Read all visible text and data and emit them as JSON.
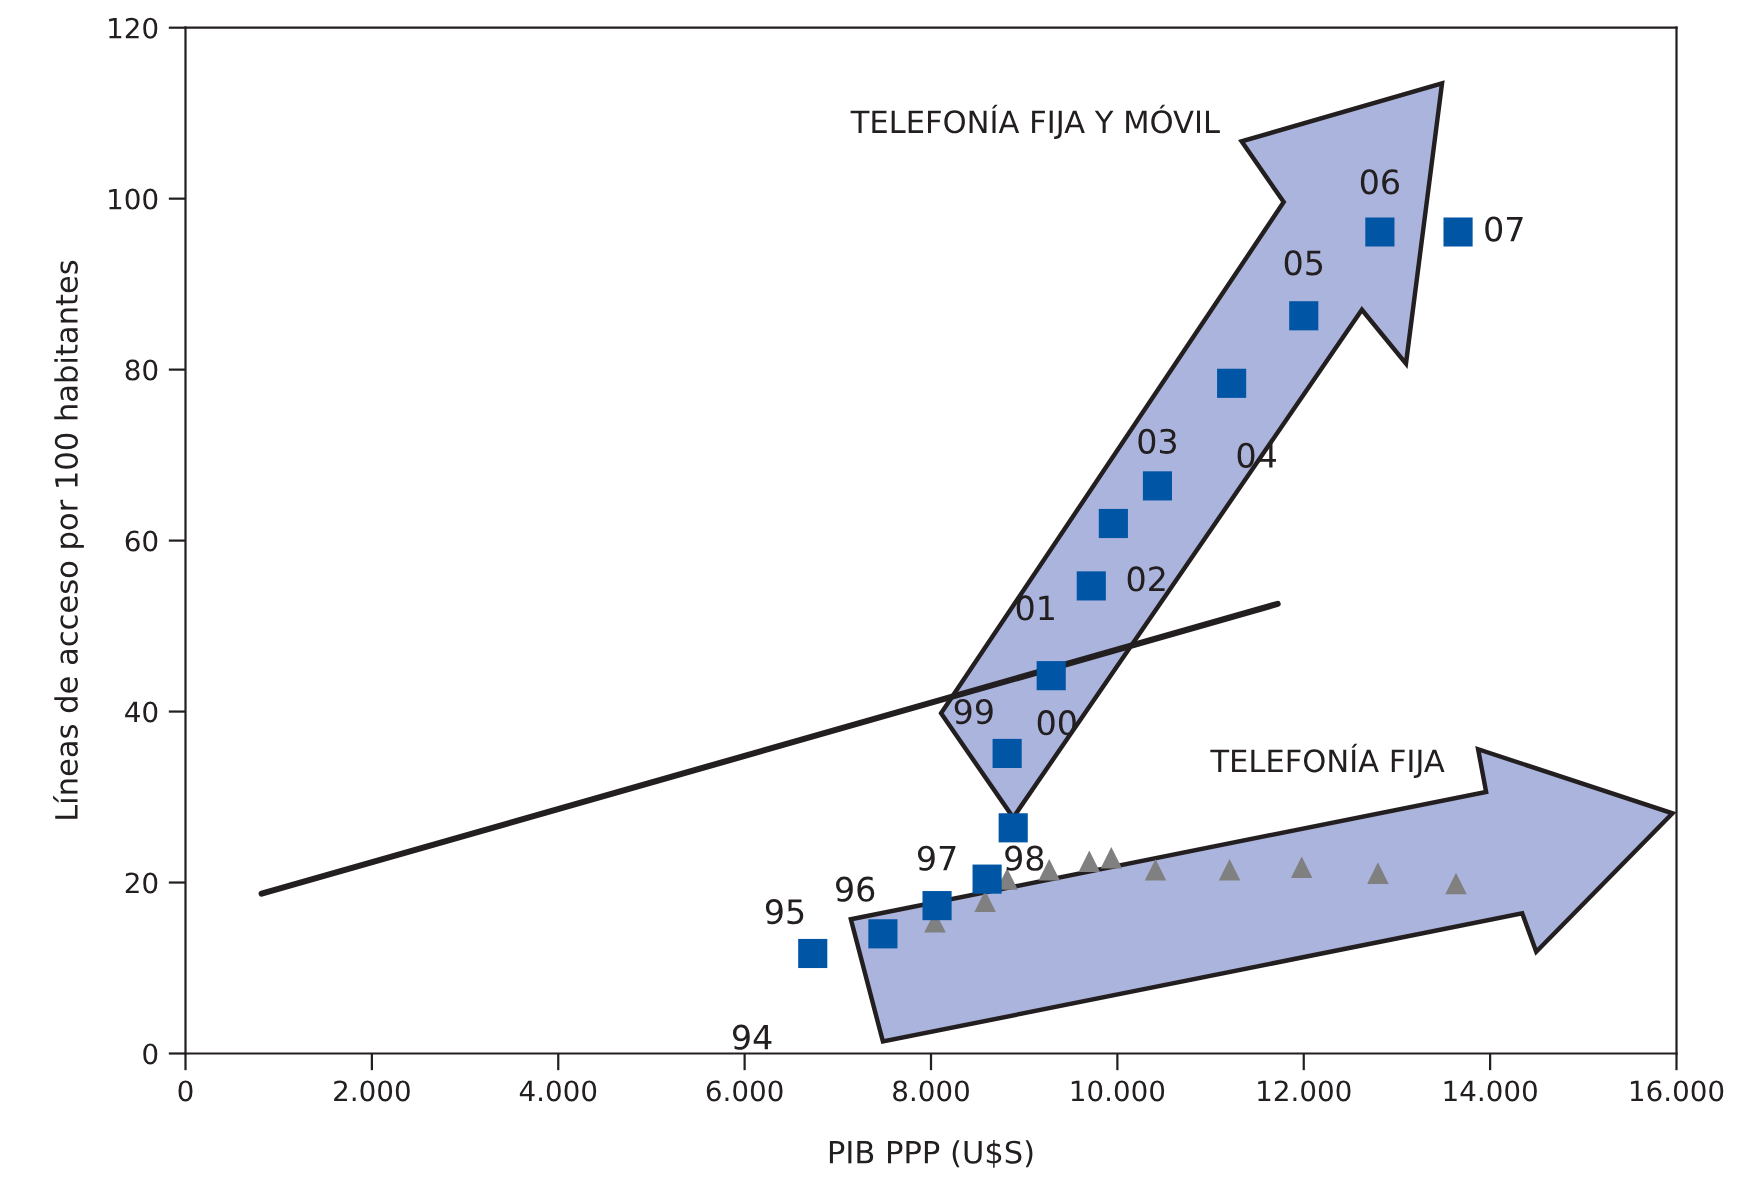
{
  "chart_data": {
    "type": "scatter",
    "xlabel": "PIB PPP (U$S)",
    "ylabel": "Líneas de acceso por 100 habitantes",
    "xlim": [
      0,
      16000
    ],
    "ylim": [
      0,
      120
    ],
    "xticks": [
      0,
      {
        "value": 2000,
        "label": "2.000"
      },
      {
        "value": 4000,
        "label": "4.000"
      },
      {
        "value": 6000,
        "label": "6.000"
      },
      {
        "value": 8000,
        "label": "8.000"
      },
      {
        "value": 10000,
        "label": "10.000"
      },
      {
        "value": 12000,
        "label": "12.000"
      },
      {
        "value": 14000,
        "label": "14.000"
      },
      {
        "value": 16000,
        "label": "16.000"
      }
    ],
    "yticks": [
      0,
      20,
      40,
      60,
      80,
      100,
      120
    ],
    "grid": false,
    "series": [
      {
        "type": "line",
        "color": "#231f20",
        "x": [
          817,
          11720
        ],
        "values": [
          18.7,
          52.6
        ],
        "marker": "none"
      },
      {
        "color": "#808080",
        "marker": "triangle",
        "x": [
          8043,
          8581,
          8817,
          9269,
          9699,
          9935,
          10409,
          11204,
          11978,
          12796,
          13634
        ],
        "values": [
          15.4,
          17.8,
          20.4,
          21.5,
          22.5,
          22.9,
          21.5,
          21.5,
          21.8,
          21.1,
          19.9
        ]
      },
      {
        "color": "#0055a5",
        "marker": "square",
        "x": [
          6731,
          7484,
          8065,
          8602,
          8882,
          8817,
          9290,
          9720,
          9957,
          10430,
          11226,
          12000,
          12817,
          13656
        ],
        "values": [
          11.7,
          14.0,
          17.3,
          20.4,
          26.4,
          35.1,
          44.2,
          54.7,
          62.0,
          66.4,
          78.4,
          86.3,
          96.1,
          96.1
        ]
      }
    ],
    "annotations": [
      "94",
      {
        "text": "95",
        "x": 6731,
        "y": 11.7
      },
      {
        "text": "96",
        "x": 7484,
        "y": 14.0
      },
      {
        "text": "97",
        "x": 8065,
        "y": 17.3
      },
      {
        "text": "98",
        "x": 8882,
        "y": 26.4
      },
      {
        "text": "99",
        "x": 8817,
        "y": 35.1
      },
      {
        "text": "00",
        "x": 9290,
        "y": 44.2
      },
      {
        "text": "01",
        "x": 9720,
        "y": 54.7
      },
      {
        "text": "02",
        "x": 9957,
        "y": 62.0
      },
      {
        "text": "03",
        "x": 10430,
        "y": 66.4
      },
      {
        "text": "04",
        "x": 11226,
        "y": 78.4
      },
      {
        "text": "05",
        "x": 12000,
        "y": 86.3
      },
      {
        "text": "06",
        "x": 12817,
        "y": 96.1
      },
      {
        "text": "07",
        "x": 13656,
        "y": 96.1
      },
      "TELEFONÍA FIJA Y MÓVIL",
      "TELEFONÍA FIJA"
    ]
  }
}
